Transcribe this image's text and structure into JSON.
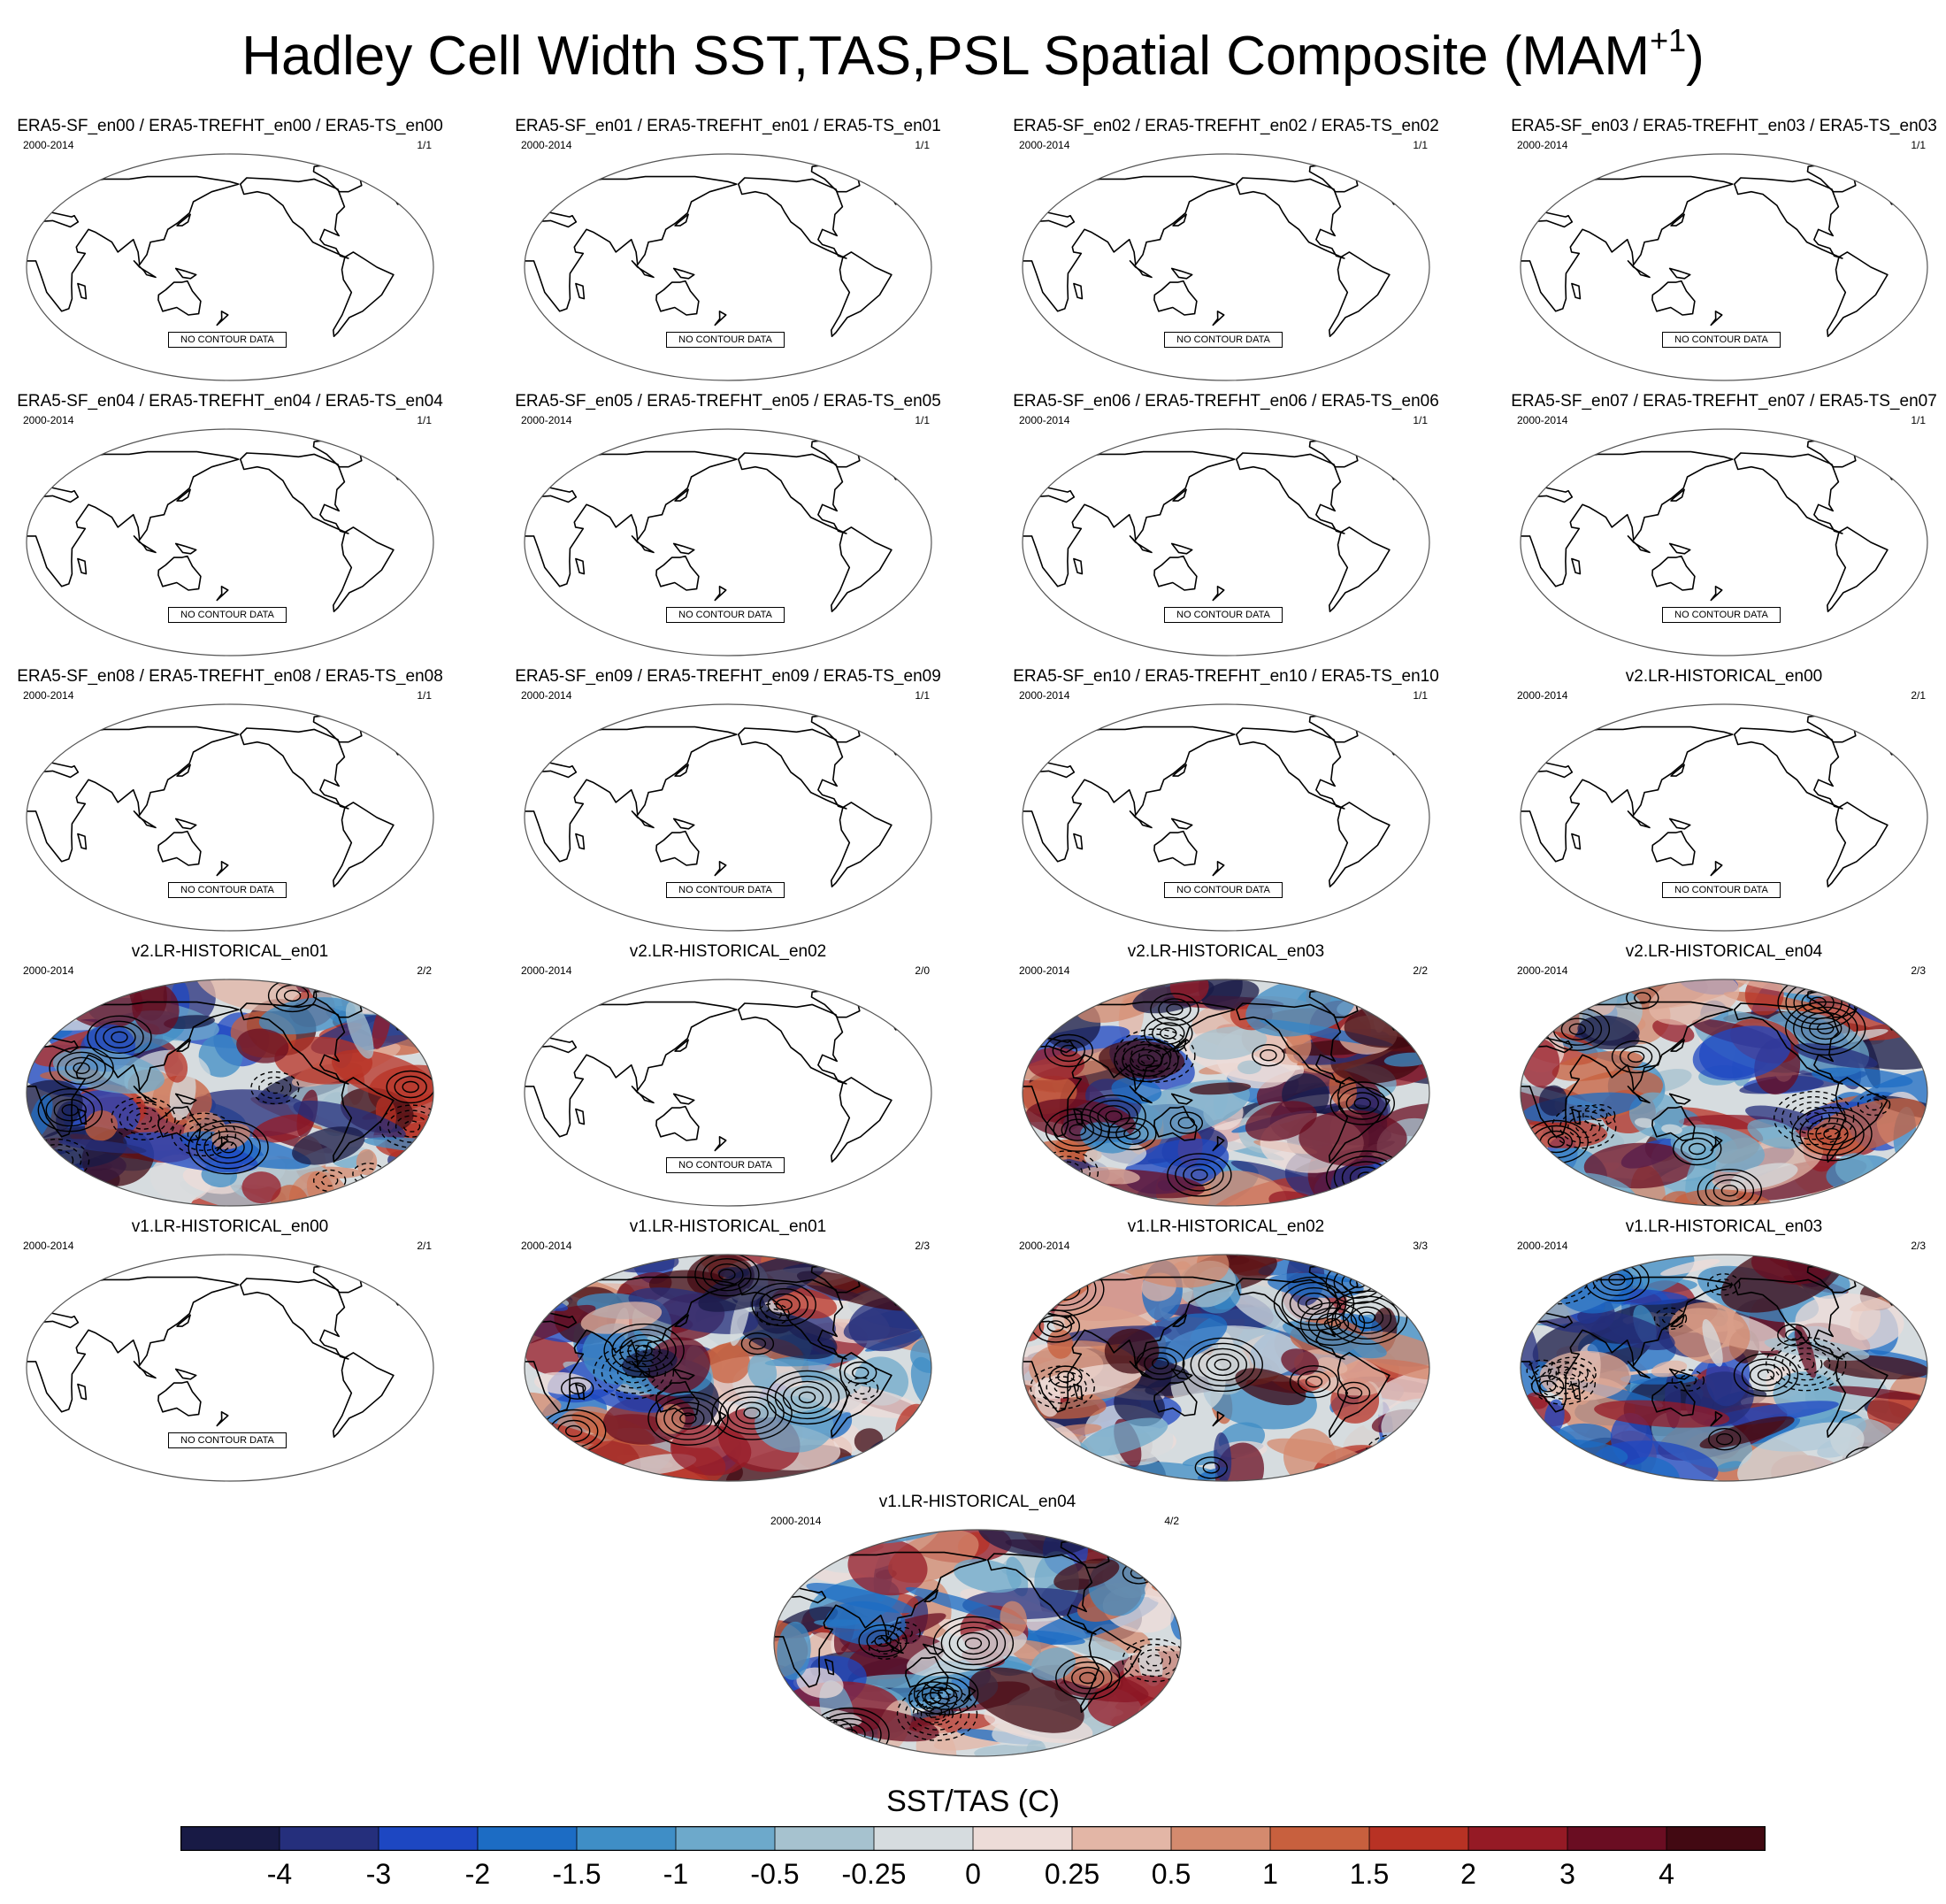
{
  "figure": {
    "title": "Hadley Cell Width SST,TAS,PSL Spatial Composite (MAM",
    "title_sup": "+1",
    "title_end": ")",
    "colorbar_label": "SST/TAS (C)",
    "no_contour_text": "NO CONTOUR DATA"
  },
  "chart_data": {
    "type": "heatmap",
    "projection": "robinson",
    "colorbar": {
      "ticks": [
        "-4",
        "-3",
        "-2",
        "-1.5",
        "-1",
        "-0.5",
        "-0.25",
        "0",
        "0.25",
        "0.5",
        "1",
        "1.5",
        "2",
        "3",
        "4"
      ],
      "colors": [
        "#181a45",
        "#252f7c",
        "#1d47c2",
        "#1c6cc4",
        "#3f8ec6",
        "#6da9cb",
        "#a6c2cf",
        "#d6dcdf",
        "#eddcd8",
        "#e3b6a6",
        "#d48a6e",
        "#c8603e",
        "#b83224",
        "#951a25",
        "#6a0d22",
        "#420912"
      ]
    },
    "panels": [
      {
        "title": "ERA5-SF_en00 / ERA5-TREFHT_en00 / ERA5-TS_en00",
        "years": "2000-2014",
        "count": "1/1",
        "has_data": false
      },
      {
        "title": "ERA5-SF_en01 / ERA5-TREFHT_en01 / ERA5-TS_en01",
        "years": "2000-2014",
        "count": "1/1",
        "has_data": false
      },
      {
        "title": "ERA5-SF_en02 / ERA5-TREFHT_en02 / ERA5-TS_en02",
        "years": "2000-2014",
        "count": "1/1",
        "has_data": false
      },
      {
        "title": "ERA5-SF_en03 / ERA5-TREFHT_en03 / ERA5-TS_en03",
        "years": "2000-2014",
        "count": "1/1",
        "has_data": false
      },
      {
        "title": "ERA5-SF_en04 / ERA5-TREFHT_en04 / ERA5-TS_en04",
        "years": "2000-2014",
        "count": "1/1",
        "has_data": false
      },
      {
        "title": "ERA5-SF_en05 / ERA5-TREFHT_en05 / ERA5-TS_en05",
        "years": "2000-2014",
        "count": "1/1",
        "has_data": false
      },
      {
        "title": "ERA5-SF_en06 / ERA5-TREFHT_en06 / ERA5-TS_en06",
        "years": "2000-2014",
        "count": "1/1",
        "has_data": false
      },
      {
        "title": "ERA5-SF_en07 / ERA5-TREFHT_en07 / ERA5-TS_en07",
        "years": "2000-2014",
        "count": "1/1",
        "has_data": false
      },
      {
        "title": "ERA5-SF_en08 / ERA5-TREFHT_en08 / ERA5-TS_en08",
        "years": "2000-2014",
        "count": "1/1",
        "has_data": false
      },
      {
        "title": "ERA5-SF_en09 / ERA5-TREFHT_en09 / ERA5-TS_en09",
        "years": "2000-2014",
        "count": "1/1",
        "has_data": false
      },
      {
        "title": "ERA5-SF_en10 / ERA5-TREFHT_en10 / ERA5-TS_en10",
        "years": "2000-2014",
        "count": "1/1",
        "has_data": false
      },
      {
        "title": "v2.LR-HISTORICAL_en00",
        "years": "2000-2014",
        "count": "2/1",
        "has_data": false
      },
      {
        "title": "v2.LR-HISTORICAL_en01",
        "years": "2000-2014",
        "count": "2/2",
        "has_data": true
      },
      {
        "title": "v2.LR-HISTORICAL_en02",
        "years": "2000-2014",
        "count": "2/0",
        "has_data": false
      },
      {
        "title": "v2.LR-HISTORICAL_en03",
        "years": "2000-2014",
        "count": "2/2",
        "has_data": true
      },
      {
        "title": "v2.LR-HISTORICAL_en04",
        "years": "2000-2014",
        "count": "2/3",
        "has_data": true
      },
      {
        "title": "v1.LR-HISTORICAL_en00",
        "years": "2000-2014",
        "count": "2/1",
        "has_data": false
      },
      {
        "title": "v1.LR-HISTORICAL_en01",
        "years": "2000-2014",
        "count": "2/3",
        "has_data": true
      },
      {
        "title": "v1.LR-HISTORICAL_en02",
        "years": "2000-2014",
        "count": "3/3",
        "has_data": true
      },
      {
        "title": "v1.LR-HISTORICAL_en03",
        "years": "2000-2014",
        "count": "2/3",
        "has_data": true
      },
      {
        "title": "v1.LR-HISTORICAL_en04",
        "years": "2000-2014",
        "count": "4/2",
        "has_data": true
      }
    ]
  }
}
